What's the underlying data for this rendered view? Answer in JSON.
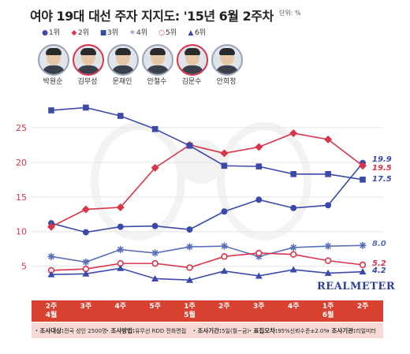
{
  "header": {
    "title": "여야 19대 대선 주자 지지도: '15년 6월 2주차",
    "unit": "단위: %"
  },
  "legend": [
    {
      "label": "1위",
      "marker": "●",
      "color": "#3b4aa8"
    },
    {
      "label": "2위",
      "marker": "◆",
      "color": "#d9344a"
    },
    {
      "label": "3위",
      "marker": "■",
      "color": "#3b4aa8"
    },
    {
      "label": "4위",
      "marker": "✳",
      "color": "#5a6fb8"
    },
    {
      "label": "5위",
      "marker": "○",
      "color": "#d9344a"
    },
    {
      "label": "6위",
      "marker": "▲",
      "color": "#3b4aa8"
    }
  ],
  "candidates": [
    {
      "name": "박원순",
      "border": "blue"
    },
    {
      "name": "김무성",
      "border": "red"
    },
    {
      "name": "문재인",
      "border": "blue"
    },
    {
      "name": "안철수",
      "border": "blue"
    },
    {
      "name": "김문수",
      "border": "red"
    },
    {
      "name": "안희정",
      "border": "blue"
    }
  ],
  "brand": "REALMETER",
  "footer": [
    {
      "key": "조사대상:",
      "val": "전국 성인 2500명"
    },
    {
      "key": "조사방법:",
      "val": "유무선 RDD 전화면접"
    },
    {
      "key": "조사기간:",
      "val": "5일(월~금)"
    },
    {
      "key": "표집오차:",
      "val": "95%신뢰수준±2.0%"
    },
    {
      "key": "조사기관:",
      "val": "리얼미터"
    }
  ],
  "chart_data": {
    "type": "line",
    "categories": [
      "2주\n4월",
      "3주",
      "4주",
      "5주",
      "1주\n5월",
      "2주",
      "3주",
      "4주",
      "1주\n6월",
      "2주"
    ],
    "ylim": [
      2,
      30
    ],
    "yticks": [
      5,
      10,
      15,
      20,
      25
    ],
    "series": [
      {
        "name": "박원순",
        "color": "#3b4aa8",
        "marker": "circle",
        "values": [
          11.2,
          9.9,
          10.7,
          10.8,
          10.3,
          12.9,
          14.6,
          13.4,
          13.8,
          19.9
        ],
        "end_label": "19.9"
      },
      {
        "name": "김무성",
        "color": "#d9344a",
        "marker": "diamond",
        "values": [
          10.7,
          13.2,
          13.5,
          19.2,
          22.5,
          21.3,
          22.2,
          24.2,
          23.3,
          19.5
        ],
        "end_label": "19.5"
      },
      {
        "name": "문재인",
        "color": "#3b4aa8",
        "marker": "square",
        "values": [
          27.5,
          27.9,
          26.7,
          24.8,
          22.4,
          19.5,
          19.4,
          18.3,
          18.3,
          17.5
        ],
        "end_label": "17.5"
      },
      {
        "name": "안철수",
        "color": "#5a6fb8",
        "marker": "star",
        "values": [
          6.4,
          5.6,
          7.4,
          6.9,
          7.8,
          7.9,
          6.4,
          7.7,
          7.9,
          8.0
        ],
        "end_label": "8.0"
      },
      {
        "name": "김문수",
        "color": "#d9344a",
        "marker": "circle-open",
        "values": [
          4.4,
          4.6,
          5.4,
          5.4,
          4.8,
          6.4,
          6.9,
          6.7,
          5.8,
          5.2
        ],
        "end_label": "5.2"
      },
      {
        "name": "안희정",
        "color": "#3b4aa8",
        "marker": "triangle",
        "values": [
          3.8,
          3.9,
          4.7,
          3.2,
          3.0,
          4.3,
          3.6,
          4.5,
          4.0,
          4.2
        ],
        "end_label": "4.2"
      }
    ]
  }
}
